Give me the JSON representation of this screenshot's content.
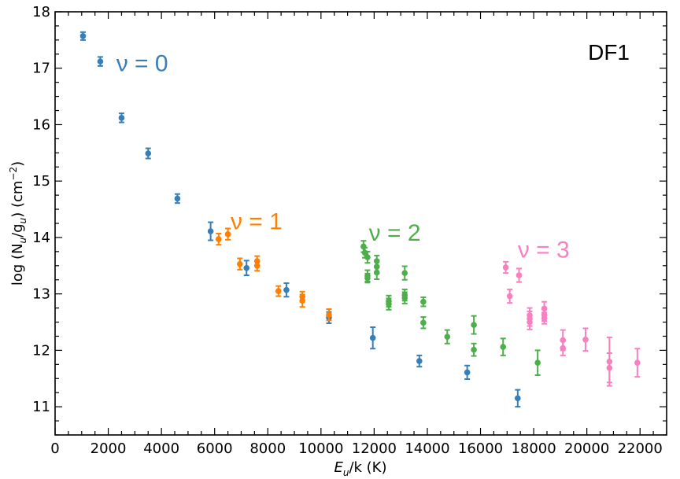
{
  "chart_data": {
    "type": "scatter",
    "panel_label": "DF1",
    "xlabel_parts": [
      "E",
      "u",
      "/k (K)"
    ],
    "ylabel_parts": [
      "log (N",
      "u",
      "/g",
      "u",
      ") (cm",
      "−2",
      ")"
    ],
    "xlim": [
      0,
      23000
    ],
    "ylim": [
      10.5,
      18
    ],
    "xticks": [
      0,
      2000,
      4000,
      6000,
      8000,
      10000,
      12000,
      14000,
      16000,
      18000,
      20000,
      22000
    ],
    "yticks": [
      11,
      12,
      13,
      14,
      15,
      16,
      17,
      18
    ],
    "grid": false,
    "colors": {
      "v0": "#377eb8",
      "v1": "#ff7f00",
      "v2": "#4daf4a",
      "v3": "#f781bf"
    },
    "annotations": [
      {
        "text": "ν = 0",
        "series": "v0",
        "x": 2300,
        "y": 17.1
      },
      {
        "text": "ν  = 1",
        "series": "v1",
        "x": 6600,
        "y": 14.3
      },
      {
        "text": "ν = 2",
        "series": "v2",
        "x": 11800,
        "y": 14.1
      },
      {
        "text": "ν = 3",
        "series": "v3",
        "x": 17400,
        "y": 13.8
      }
    ],
    "series": [
      {
        "key": "v0",
        "points": [
          [
            1050,
            17.57,
            0.07
          ],
          [
            1700,
            17.12,
            0.08
          ],
          [
            2500,
            16.12,
            0.08
          ],
          [
            3500,
            15.49,
            0.09
          ],
          [
            4600,
            14.69,
            0.08
          ],
          [
            5850,
            14.11,
            0.16
          ],
          [
            7200,
            13.46,
            0.13
          ],
          [
            8700,
            13.07,
            0.12
          ],
          [
            10300,
            12.58,
            0.1
          ],
          [
            11950,
            12.22,
            0.19
          ],
          [
            13700,
            11.81,
            0.1
          ],
          [
            15500,
            11.61,
            0.12
          ],
          [
            17400,
            11.15,
            0.15
          ]
        ]
      },
      {
        "key": "v1",
        "points": [
          [
            6150,
            13.97,
            0.1
          ],
          [
            6500,
            14.06,
            0.1
          ],
          [
            6950,
            13.53,
            0.1
          ],
          [
            7600,
            13.58,
            0.09
          ],
          [
            7600,
            13.5,
            0.09
          ],
          [
            8400,
            13.05,
            0.09
          ],
          [
            9300,
            12.95,
            0.09
          ],
          [
            9300,
            12.88,
            0.11
          ],
          [
            10300,
            12.63,
            0.1
          ]
        ]
      },
      {
        "key": "v2",
        "points": [
          [
            11600,
            13.84,
            0.1
          ],
          [
            11650,
            13.73,
            0.09
          ],
          [
            11750,
            13.65,
            0.1
          ],
          [
            11750,
            13.32,
            0.1
          ],
          [
            11750,
            13.28,
            0.08
          ],
          [
            12100,
            13.58,
            0.1
          ],
          [
            12100,
            13.48,
            0.12
          ],
          [
            12100,
            13.38,
            0.12
          ],
          [
            12550,
            12.87,
            0.1
          ],
          [
            12550,
            12.82,
            0.1
          ],
          [
            13150,
            13.37,
            0.12
          ],
          [
            13150,
            12.98,
            0.1
          ],
          [
            13150,
            12.93,
            0.1
          ],
          [
            13850,
            12.86,
            0.08
          ],
          [
            13850,
            12.49,
            0.1
          ],
          [
            14750,
            12.24,
            0.12
          ],
          [
            15750,
            12.45,
            0.16
          ],
          [
            15750,
            12.01,
            0.11
          ],
          [
            16850,
            12.06,
            0.15
          ],
          [
            18150,
            11.78,
            0.22
          ]
        ]
      },
      {
        "key": "v3",
        "points": [
          [
            16950,
            13.47,
            0.1
          ],
          [
            17100,
            12.96,
            0.12
          ],
          [
            17450,
            13.33,
            0.12
          ],
          [
            17850,
            12.62,
            0.13
          ],
          [
            17850,
            12.56,
            0.13
          ],
          [
            17850,
            12.5,
            0.13
          ],
          [
            18400,
            12.74,
            0.12
          ],
          [
            18400,
            12.63,
            0.11
          ],
          [
            18400,
            12.57,
            0.1
          ],
          [
            19100,
            12.18,
            0.18
          ],
          [
            19100,
            12.04,
            0.13
          ],
          [
            19950,
            12.19,
            0.2
          ],
          [
            20850,
            11.8,
            0.43
          ],
          [
            20850,
            11.69,
            0.26
          ],
          [
            21900,
            11.78,
            0.25
          ]
        ]
      }
    ]
  }
}
